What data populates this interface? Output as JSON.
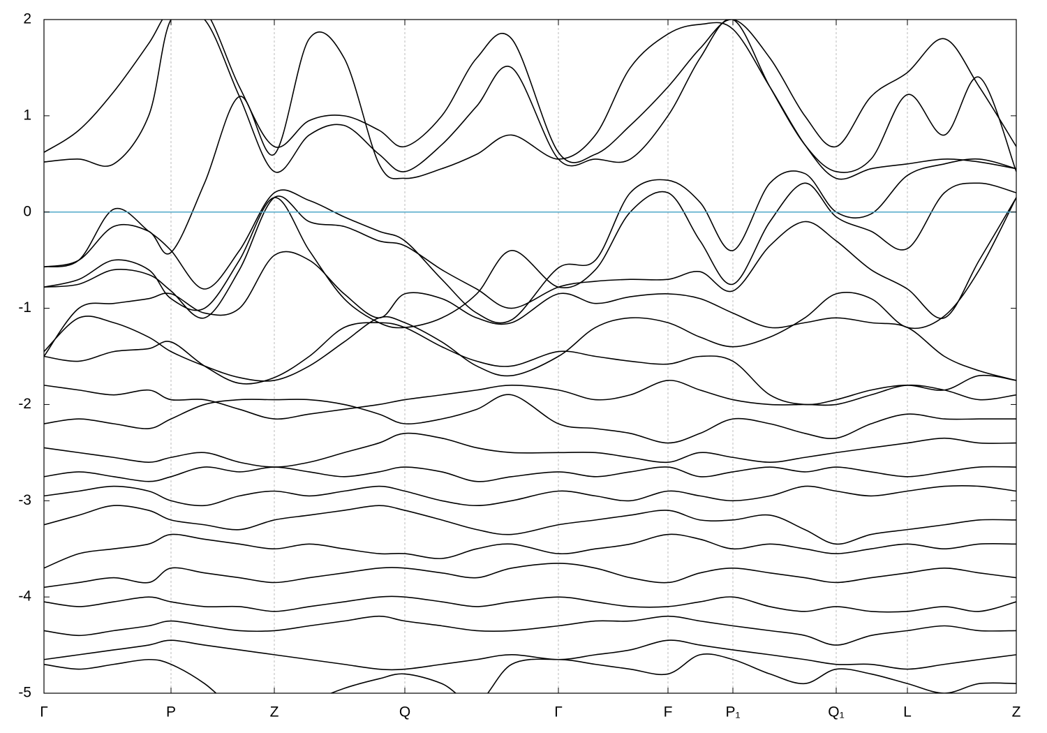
{
  "chart_data": {
    "type": "line",
    "x": [
      0,
      0.5,
      1,
      1.5,
      1.82,
      2.3,
      2.8,
      3.3,
      3.8,
      4.3,
      4.8,
      5.17,
      5.7,
      6.2,
      6.7,
      7.37,
      7.9,
      8.4,
      8.94,
      9.4,
      9.87,
      10.4,
      10.9,
      11.35,
      11.85,
      12.37,
      12.9,
      13.4,
      13.93
    ],
    "xlim": [
      0,
      13.93
    ],
    "xticks": [
      {
        "value": 0,
        "label": "Γ"
      },
      {
        "value": 1.82,
        "label": "P"
      },
      {
        "value": 3.3,
        "label": "Z"
      },
      {
        "value": 5.17,
        "label": "Q"
      },
      {
        "value": 7.37,
        "label": "Γ"
      },
      {
        "value": 8.94,
        "label": "F"
      },
      {
        "value": 9.87,
        "label": "P₁"
      },
      {
        "value": 11.35,
        "label": "Q₁"
      },
      {
        "value": 12.37,
        "label": "L"
      },
      {
        "value": 13.93,
        "label": "Z"
      }
    ],
    "ylim": [
      -5,
      2
    ],
    "yticks": [
      -5,
      -4,
      -3,
      -2,
      -1,
      0,
      1,
      2
    ],
    "xgrid": true,
    "color": "#000000",
    "reference_line": {
      "value": 0,
      "color": "#4fa8c8"
    },
    "series": [
      {
        "values": [
          0.62,
          0.85,
          1.25,
          1.75,
          2.1,
          2.1,
          1.3,
          0.68,
          0.95,
          1.0,
          0.85,
          0.68,
          1.0,
          1.6,
          1.8,
          0.62,
          0.6,
          0.9,
          1.3,
          1.7,
          2.0,
          1.6,
          1.0,
          0.68,
          1.2,
          1.45,
          1.8,
          1.3,
          0.68
        ]
      },
      {
        "values": [
          0.52,
          0.55,
          0.5,
          1.0,
          2.0,
          2.0,
          1.2,
          0.42,
          0.8,
          0.9,
          0.6,
          0.42,
          0.7,
          1.1,
          1.5,
          0.55,
          0.55,
          0.55,
          1.0,
          1.6,
          2.0,
          1.3,
          0.7,
          0.42,
          0.55,
          1.22,
          0.8,
          1.4,
          0.42
        ]
      },
      {
        "values": [
          -0.57,
          -0.5,
          -0.15,
          -0.2,
          -0.42,
          0.3,
          1.2,
          0.6,
          1.8,
          1.6,
          0.5,
          0.35,
          0.45,
          0.6,
          0.8,
          0.55,
          0.8,
          1.5,
          1.85,
          1.95,
          1.9,
          1.3,
          0.7,
          0.35,
          0.45,
          0.5,
          0.55,
          0.52,
          0.45
        ]
      },
      {
        "values": [
          -0.57,
          -0.5,
          0.03,
          -0.2,
          -0.4,
          -0.8,
          -0.4,
          0.2,
          0.12,
          -0.05,
          -0.2,
          -0.3,
          -0.7,
          -1.05,
          -1.12,
          -0.58,
          -0.5,
          0.2,
          0.33,
          0.1,
          -0.4,
          0.3,
          0.4,
          0.0,
          -0.02,
          0.38,
          0.5,
          0.55,
          0.45
        ]
      },
      {
        "values": [
          -0.78,
          -0.7,
          -0.5,
          -0.6,
          -0.9,
          -1.0,
          -0.5,
          0.15,
          -0.4,
          -0.9,
          -1.15,
          -1.2,
          -1.1,
          -0.85,
          -0.4,
          -0.78,
          -0.6,
          0.0,
          0.2,
          -0.3,
          -0.75,
          -0.1,
          0.3,
          -0.05,
          -0.2,
          -0.38,
          0.2,
          0.3,
          0.2
        ]
      },
      {
        "values": [
          -0.78,
          -0.75,
          -0.6,
          -0.65,
          -0.82,
          -1.1,
          -0.6,
          0.15,
          -0.1,
          -0.15,
          -0.3,
          -0.35,
          -0.6,
          -0.8,
          -1.0,
          -0.78,
          -0.72,
          -0.7,
          -0.7,
          -0.62,
          -0.82,
          -0.35,
          -0.1,
          -0.3,
          -0.6,
          -0.8,
          -1.1,
          -0.5,
          0.15
        ]
      },
      {
        "values": [
          -1.45,
          -1.1,
          -1.15,
          -1.3,
          -1.45,
          -1.6,
          -1.72,
          -1.75,
          -1.6,
          -1.35,
          -1.1,
          -1.15,
          -1.35,
          -1.6,
          -1.7,
          -1.5,
          -1.2,
          -1.1,
          -1.15,
          -1.3,
          -1.4,
          -1.3,
          -1.1,
          -0.85,
          -0.9,
          -1.2,
          -1.08,
          -0.6,
          0.15
        ]
      },
      {
        "values": [
          -1.5,
          -1.55,
          -1.45,
          -1.42,
          -1.35,
          -1.6,
          -1.78,
          -1.72,
          -1.5,
          -1.2,
          -1.15,
          -1.2,
          -1.4,
          -1.55,
          -1.6,
          -1.45,
          -1.5,
          -1.55,
          -1.58,
          -1.5,
          -1.55,
          -1.9,
          -2.0,
          -1.95,
          -1.85,
          -1.8,
          -1.85,
          -1.7,
          -1.75
        ]
      },
      {
        "values": [
          -1.5,
          -1.0,
          -0.95,
          -0.9,
          -0.85,
          -1.05,
          -1.0,
          -0.45,
          -0.5,
          -0.85,
          -1.1,
          -0.85,
          -0.9,
          -1.1,
          -1.15,
          -0.85,
          -0.95,
          -0.88,
          -0.85,
          -0.9,
          -1.05,
          -1.2,
          -1.15,
          -1.1,
          -1.15,
          -1.2,
          -1.5,
          -1.65,
          -1.75
        ]
      },
      {
        "values": [
          -1.8,
          -1.85,
          -1.9,
          -1.85,
          -1.95,
          -1.95,
          -2.05,
          -2.15,
          -2.1,
          -2.05,
          -2.0,
          -1.95,
          -1.9,
          -1.85,
          -1.8,
          -1.85,
          -1.95,
          -1.9,
          -1.75,
          -1.85,
          -1.95,
          -2.0,
          -2.0,
          -2.0,
          -1.9,
          -1.8,
          -1.85,
          -1.95,
          -1.9
        ]
      },
      {
        "values": [
          -2.2,
          -2.15,
          -2.2,
          -2.25,
          -2.15,
          -2.0,
          -1.95,
          -1.95,
          -1.95,
          -2.0,
          -2.1,
          -2.2,
          -2.15,
          -2.05,
          -1.9,
          -2.2,
          -2.25,
          -2.3,
          -2.4,
          -2.3,
          -2.15,
          -2.2,
          -2.3,
          -2.35,
          -2.2,
          -2.1,
          -2.15,
          -2.15,
          -2.15
        ]
      },
      {
        "values": [
          -2.45,
          -2.5,
          -2.55,
          -2.6,
          -2.55,
          -2.5,
          -2.6,
          -2.65,
          -2.6,
          -2.5,
          -2.4,
          -2.3,
          -2.35,
          -2.45,
          -2.5,
          -2.5,
          -2.5,
          -2.55,
          -2.6,
          -2.5,
          -2.55,
          -2.6,
          -2.55,
          -2.5,
          -2.45,
          -2.4,
          -2.35,
          -2.4,
          -2.4
        ]
      },
      {
        "values": [
          -2.75,
          -2.7,
          -2.75,
          -2.8,
          -2.75,
          -2.65,
          -2.7,
          -2.65,
          -2.7,
          -2.75,
          -2.7,
          -2.65,
          -2.7,
          -2.8,
          -2.75,
          -2.7,
          -2.75,
          -2.7,
          -2.65,
          -2.75,
          -2.7,
          -2.65,
          -2.7,
          -2.65,
          -2.7,
          -2.75,
          -2.7,
          -2.65,
          -2.65
        ]
      },
      {
        "values": [
          -2.95,
          -2.9,
          -2.85,
          -2.9,
          -3.0,
          -3.05,
          -2.95,
          -2.9,
          -2.95,
          -2.9,
          -2.85,
          -2.9,
          -3.0,
          -3.05,
          -3.0,
          -2.9,
          -2.95,
          -3.0,
          -2.9,
          -2.95,
          -3.0,
          -2.95,
          -2.85,
          -2.9,
          -2.95,
          -2.9,
          -2.85,
          -2.85,
          -2.9
        ]
      },
      {
        "values": [
          -3.25,
          -3.15,
          -3.05,
          -3.1,
          -3.2,
          -3.25,
          -3.3,
          -3.2,
          -3.15,
          -3.1,
          -3.05,
          -3.1,
          -3.2,
          -3.3,
          -3.35,
          -3.25,
          -3.2,
          -3.15,
          -3.1,
          -3.2,
          -3.2,
          -3.15,
          -3.3,
          -3.45,
          -3.35,
          -3.3,
          -3.25,
          -3.2,
          -3.2
        ]
      },
      {
        "values": [
          -3.7,
          -3.55,
          -3.5,
          -3.45,
          -3.35,
          -3.4,
          -3.45,
          -3.5,
          -3.45,
          -3.5,
          -3.55,
          -3.55,
          -3.6,
          -3.5,
          -3.45,
          -3.55,
          -3.5,
          -3.45,
          -3.35,
          -3.4,
          -3.5,
          -3.45,
          -3.5,
          -3.55,
          -3.5,
          -3.45,
          -3.5,
          -3.45,
          -3.45
        ]
      },
      {
        "values": [
          -3.9,
          -3.85,
          -3.8,
          -3.85,
          -3.7,
          -3.75,
          -3.8,
          -3.85,
          -3.8,
          -3.75,
          -3.7,
          -3.7,
          -3.75,
          -3.8,
          -3.7,
          -3.65,
          -3.7,
          -3.8,
          -3.85,
          -3.75,
          -3.7,
          -3.75,
          -3.8,
          -3.85,
          -3.8,
          -3.75,
          -3.7,
          -3.75,
          -3.8
        ]
      },
      {
        "values": [
          -4.05,
          -4.1,
          -4.05,
          -4.0,
          -4.05,
          -4.1,
          -4.1,
          -4.15,
          -4.1,
          -4.05,
          -4.0,
          -4.0,
          -4.05,
          -4.1,
          -4.05,
          -4.0,
          -4.05,
          -4.1,
          -4.1,
          -4.05,
          -4.0,
          -4.1,
          -4.15,
          -4.1,
          -4.15,
          -4.15,
          -4.1,
          -4.15,
          -4.05
        ]
      },
      {
        "values": [
          -4.35,
          -4.4,
          -4.35,
          -4.3,
          -4.25,
          -4.3,
          -4.35,
          -4.35,
          -4.3,
          -4.25,
          -4.2,
          -4.25,
          -4.3,
          -4.35,
          -4.35,
          -4.3,
          -4.25,
          -4.25,
          -4.2,
          -4.25,
          -4.3,
          -4.35,
          -4.4,
          -4.5,
          -4.4,
          -4.35,
          -4.3,
          -4.35,
          -4.35
        ]
      },
      {
        "values": [
          -4.65,
          -4.6,
          -4.55,
          -4.5,
          -4.45,
          -4.5,
          -4.55,
          -4.6,
          -4.65,
          -4.7,
          -4.75,
          -4.75,
          -4.7,
          -4.65,
          -4.6,
          -4.65,
          -4.6,
          -4.55,
          -4.45,
          -4.5,
          -4.55,
          -4.6,
          -4.65,
          -4.7,
          -4.7,
          -4.75,
          -4.7,
          -4.65,
          -4.6
        ]
      },
      {
        "values": [
          -4.7,
          -4.75,
          -4.7,
          -4.65,
          -4.7,
          -4.9,
          -5.2,
          -5.3,
          -5.1,
          -4.95,
          -4.85,
          -4.8,
          -4.9,
          -5.1,
          -4.7,
          -4.65,
          -4.7,
          -4.75,
          -4.8,
          -4.6,
          -4.65,
          -4.8,
          -4.9,
          -4.75,
          -4.8,
          -4.9,
          -5.0,
          -4.9,
          -4.9
        ]
      }
    ]
  }
}
